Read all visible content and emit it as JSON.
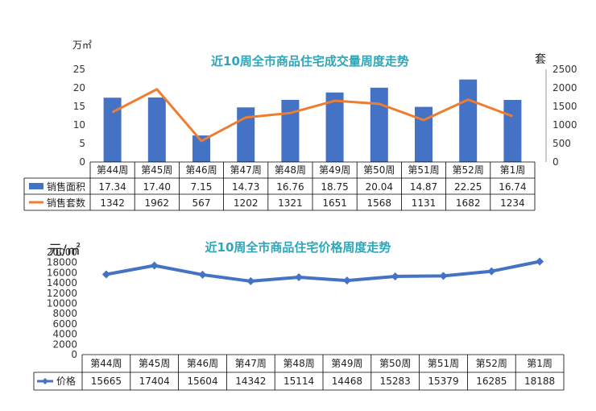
{
  "colors": {
    "bar": "#4472c4",
    "line": "#ed7d31",
    "price": "#4472c4",
    "title": "#2fa6b8"
  },
  "chart_data": [
    {
      "type": "bar",
      "title": "近10周全市商品住宅成交量周度走势",
      "y_unit_left": "万㎡",
      "y_unit_right": "套",
      "categories": [
        "第44周",
        "第45周",
        "第46周",
        "第47周",
        "第48周",
        "第49周",
        "第50周",
        "第51周",
        "第52周",
        "第1周"
      ],
      "ylim_left": [
        0,
        25
      ],
      "yticks_left": [
        "0",
        "5",
        "10",
        "15",
        "20",
        "25"
      ],
      "ylim_right": [
        0,
        2500
      ],
      "yticks_right": [
        "0",
        "500",
        "1000",
        "1500",
        "2000",
        "2500"
      ],
      "series": [
        {
          "name": "销售面积",
          "type": "bar",
          "axis": "left",
          "values": [
            17.34,
            17.4,
            7.15,
            14.73,
            16.76,
            18.75,
            20.04,
            14.87,
            22.25,
            16.74
          ],
          "labels": [
            "17.34",
            "17.40",
            "7.15",
            "14.73",
            "16.76",
            "18.75",
            "20.04",
            "14.87",
            "22.25",
            "16.74"
          ]
        },
        {
          "name": "销售套数",
          "type": "line",
          "axis": "right",
          "values": [
            1342,
            1962,
            567,
            1202,
            1321,
            1651,
            1568,
            1131,
            1682,
            1234
          ],
          "labels": [
            "1342",
            "1962",
            "567",
            "1202",
            "1321",
            "1651",
            "1568",
            "1131",
            "1682",
            "1234"
          ]
        }
      ],
      "legend": "table-below"
    },
    {
      "type": "line",
      "title": "近10周全市商品住宅价格周度走势",
      "y_unit": "元/㎡",
      "categories": [
        "第44周",
        "第45周",
        "第46周",
        "第47周",
        "第48周",
        "第49周",
        "第50周",
        "第51周",
        "第52周",
        "第1周"
      ],
      "ylim": [
        0,
        20000
      ],
      "yticks": [
        "0",
        "2000",
        "4000",
        "6000",
        "8000",
        "10000",
        "12000",
        "14000",
        "16000",
        "18000",
        "20000"
      ],
      "series": [
        {
          "name": "价格",
          "values": [
            15665,
            17404,
            15604,
            14342,
            15114,
            14468,
            15283,
            15379,
            16285,
            18188
          ],
          "labels": [
            "15665",
            "17404",
            "15604",
            "14342",
            "15114",
            "14468",
            "15283",
            "15379",
            "16285",
            "18188"
          ]
        }
      ],
      "legend": "table-below"
    }
  ]
}
